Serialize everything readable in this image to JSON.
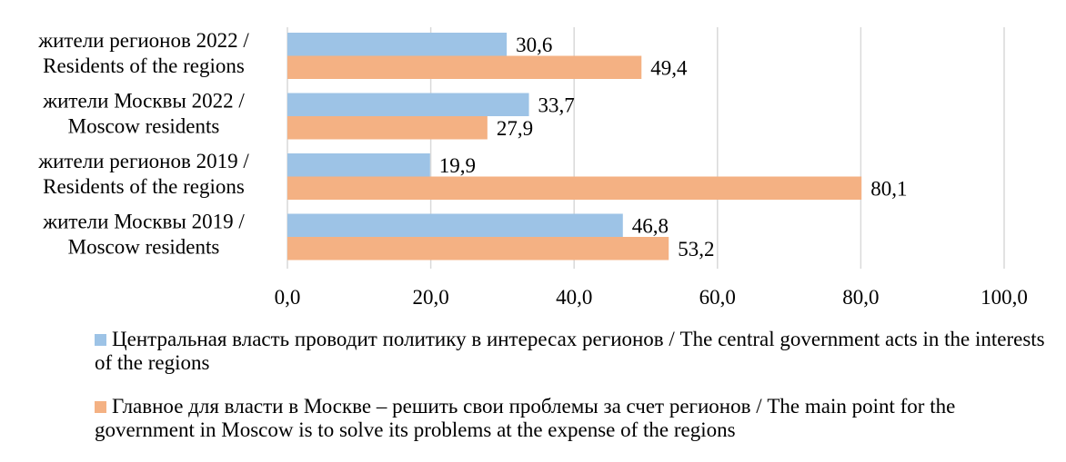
{
  "chart_data": {
    "type": "bar",
    "orientation": "horizontal",
    "categories": [
      [
        "жители регионов 2022 /",
        "Residents of the regions"
      ],
      [
        "жители Москвы 2022 /",
        "Moscow residents"
      ],
      [
        "жители регионов 2019 /",
        "Residents of the regions"
      ],
      [
        "жители Москвы 2019 /",
        "Moscow residents"
      ]
    ],
    "series": [
      {
        "name": "Центральная власть проводит политику в интересах регионов / The central government acts in the interests of the regions",
        "color": "#9DC3E6",
        "values": [
          30.6,
          33.7,
          19.9,
          46.8
        ]
      },
      {
        "name": "Главное для власти в Москве – решить свои проблемы за счет регионов / The main point for the government in Moscow is to solve its problems at the expense of the regions",
        "color": "#F4B183",
        "values": [
          49.4,
          27.9,
          80.1,
          53.2
        ]
      }
    ],
    "xlim": [
      0,
      100
    ],
    "xticks": [
      "0,0",
      "20,0",
      "40,0",
      "60,0",
      "80,0",
      "100,0"
    ],
    "xtick_values": [
      0,
      20,
      40,
      60,
      80,
      100
    ],
    "data_labels": [
      [
        "30,6",
        "33,7",
        "19,9",
        "46,8"
      ],
      [
        "49,4",
        "27,9",
        "80,1",
        "53,2"
      ]
    ],
    "grid": "vertical",
    "legend_position": "bottom"
  }
}
